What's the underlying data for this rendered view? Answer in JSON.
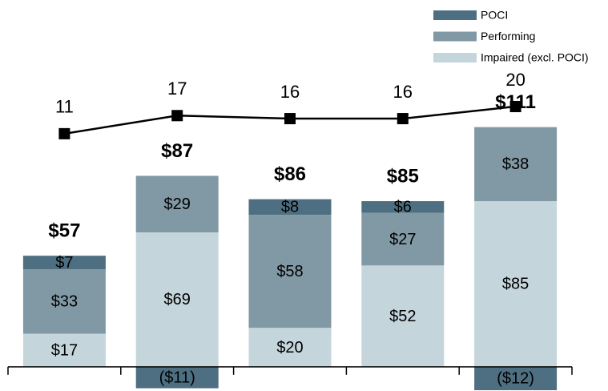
{
  "chart_data": {
    "type": "bar",
    "stacked": true,
    "categories": [
      null,
      null,
      null,
      null,
      null
    ],
    "series": [
      {
        "name": "Impaired (excl. POCI)",
        "color": "#c5d5dc",
        "values": [
          17,
          69,
          20,
          52,
          85
        ],
        "value_labels": [
          "$17",
          "$69",
          "$20",
          "$52",
          "$85"
        ]
      },
      {
        "name": "Performing",
        "color": "#8199a5",
        "values": [
          33,
          29,
          58,
          27,
          38
        ],
        "value_labels": [
          "$33",
          "$29",
          "$58",
          "$27",
          "$38"
        ]
      },
      {
        "name": "POCI",
        "color": "#4e6f81",
        "values": [
          7,
          -11,
          8,
          6,
          -12
        ],
        "value_labels": [
          "$7",
          "($11)",
          "$8",
          "$6",
          "($12)"
        ]
      }
    ],
    "totals": [
      57,
      87,
      86,
      85,
      111
    ],
    "total_labels": [
      "$57",
      "$87",
      "$86",
      "$85",
      "$111"
    ],
    "line": {
      "type": "line",
      "axis": "y2",
      "color": "#000000",
      "values": [
        11,
        17,
        16,
        16,
        20
      ]
    },
    "ylim": [
      -12,
      180
    ],
    "y2lim": [
      -74,
      50
    ],
    "legend": "upper right"
  }
}
